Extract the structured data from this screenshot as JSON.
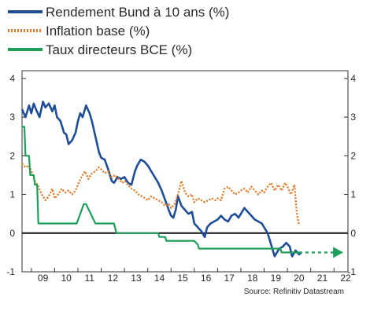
{
  "chart_data": {
    "type": "line",
    "title": "",
    "xlabel": "",
    "ylabel": "",
    "source": "Source: Refinitiv Datastream",
    "xlim": [
      2008.6,
      2022.6
    ],
    "ylim": [
      -1,
      4.2
    ],
    "x_ticks": [
      {
        "label": "09",
        "pos": 2009.5
      },
      {
        "label": "10",
        "pos": 2010.5
      },
      {
        "label": "11",
        "pos": 2011.5
      },
      {
        "label": "12",
        "pos": 2012.5
      },
      {
        "label": "13",
        "pos": 2013.5
      },
      {
        "label": "14",
        "pos": 2014.5
      },
      {
        "label": "15",
        "pos": 2015.5
      },
      {
        "label": "16",
        "pos": 2016.5
      },
      {
        "label": "17",
        "pos": 2017.5
      },
      {
        "label": "18",
        "pos": 2018.5
      },
      {
        "label": "19",
        "pos": 2019.5
      },
      {
        "label": "20",
        "pos": 2020.5
      },
      {
        "label": "21",
        "pos": 2021.5
      },
      {
        "label": "22",
        "pos": 2022.5
      }
    ],
    "y_ticks": [
      "-1",
      "0",
      "1",
      "2",
      "3",
      "4"
    ],
    "y_tick_values": [
      -1,
      0,
      1,
      2,
      3,
      4
    ],
    "zero_line": true,
    "legend_position": "top-left",
    "series": [
      {
        "name": "Rendement Bund à 10 ans (%)",
        "style": "solid",
        "color": "#1f4e96",
        "x": [
          2008.6,
          2008.75,
          2008.9,
          2009.0,
          2009.1,
          2009.2,
          2009.35,
          2009.5,
          2009.6,
          2009.75,
          2009.9,
          2010.0,
          2010.1,
          2010.25,
          2010.4,
          2010.5,
          2010.6,
          2010.75,
          2010.9,
          2011.0,
          2011.1,
          2011.2,
          2011.35,
          2011.5,
          2011.6,
          2011.75,
          2011.9,
          2012.0,
          2012.15,
          2012.3,
          2012.45,
          2012.55,
          2012.7,
          2012.85,
          2013.0,
          2013.15,
          2013.3,
          2013.45,
          2013.55,
          2013.7,
          2013.85,
          2014.0,
          2014.15,
          2014.3,
          2014.45,
          2014.6,
          2014.75,
          2014.9,
          2015.0,
          2015.1,
          2015.2,
          2015.3,
          2015.45,
          2015.6,
          2015.75,
          2015.9,
          2016.0,
          2016.15,
          2016.3,
          2016.45,
          2016.55,
          2016.7,
          2016.85,
          2017.0,
          2017.15,
          2017.3,
          2017.45,
          2017.6,
          2017.75,
          2017.9,
          2018.0,
          2018.15,
          2018.3,
          2018.45,
          2018.6,
          2018.75,
          2018.9,
          2019.0,
          2019.15,
          2019.3,
          2019.45,
          2019.55,
          2019.65,
          2019.8,
          2019.95,
          2020.1,
          2020.2,
          2020.35,
          2020.5,
          2020.6
        ],
        "values": [
          3.2,
          3.0,
          3.3,
          3.1,
          3.35,
          3.2,
          3.0,
          3.4,
          3.25,
          3.35,
          3.15,
          3.3,
          3.0,
          2.9,
          2.6,
          2.55,
          2.3,
          2.4,
          2.6,
          2.9,
          3.1,
          3.0,
          3.3,
          3.1,
          2.9,
          2.5,
          2.1,
          1.95,
          1.9,
          1.65,
          1.35,
          1.3,
          1.45,
          1.4,
          1.45,
          1.3,
          1.25,
          1.6,
          1.75,
          1.9,
          1.85,
          1.75,
          1.6,
          1.45,
          1.3,
          1.1,
          0.85,
          0.6,
          0.45,
          0.4,
          0.6,
          0.95,
          0.7,
          0.6,
          0.5,
          0.55,
          0.25,
          0.15,
          0.05,
          -0.1,
          0.15,
          0.25,
          0.3,
          0.35,
          0.45,
          0.35,
          0.3,
          0.45,
          0.5,
          0.4,
          0.5,
          0.65,
          0.55,
          0.45,
          0.35,
          0.3,
          0.25,
          0.15,
          0.0,
          -0.3,
          -0.6,
          -0.5,
          -0.4,
          -0.35,
          -0.25,
          -0.35,
          -0.6,
          -0.45,
          -0.55,
          -0.5
        ]
      },
      {
        "name": "Inflation base (%)",
        "style": "dotted",
        "color": "#e07b2a",
        "x": [
          2008.6,
          2008.75,
          2008.9,
          2009.0,
          2009.15,
          2009.3,
          2009.45,
          2009.6,
          2009.75,
          2009.9,
          2010.0,
          2010.15,
          2010.3,
          2010.45,
          2010.6,
          2010.75,
          2010.9,
          2011.0,
          2011.15,
          2011.3,
          2011.45,
          2011.6,
          2011.75,
          2011.9,
          2012.0,
          2012.15,
          2012.3,
          2012.45,
          2012.6,
          2012.75,
          2012.9,
          2013.0,
          2013.15,
          2013.3,
          2013.45,
          2013.6,
          2013.75,
          2013.9,
          2014.0,
          2014.15,
          2014.3,
          2014.45,
          2014.6,
          2014.75,
          2014.9,
          2015.0,
          2015.15,
          2015.3,
          2015.45,
          2015.6,
          2015.75,
          2015.9,
          2016.0,
          2016.15,
          2016.3,
          2016.45,
          2016.6,
          2016.75,
          2016.9,
          2017.0,
          2017.15,
          2017.3,
          2017.45,
          2017.6,
          2017.75,
          2017.9,
          2018.0,
          2018.15,
          2018.3,
          2018.45,
          2018.6,
          2018.75,
          2018.9,
          2019.0,
          2019.15,
          2019.3,
          2019.45,
          2019.6,
          2019.75,
          2019.9,
          2020.0,
          2020.15,
          2020.3,
          2020.4,
          2020.5
        ],
        "values": [
          1.8,
          1.7,
          1.75,
          1.6,
          1.35,
          1.2,
          1.0,
          0.85,
          0.95,
          1.15,
          0.9,
          1.0,
          1.15,
          1.05,
          1.1,
          1.0,
          1.1,
          1.25,
          1.45,
          1.6,
          1.4,
          1.55,
          1.6,
          1.7,
          1.65,
          1.55,
          1.6,
          1.45,
          1.5,
          1.4,
          1.3,
          1.35,
          1.25,
          1.15,
          1.1,
          1.0,
          0.95,
          0.9,
          0.85,
          0.95,
          0.9,
          0.85,
          0.8,
          0.7,
          0.75,
          0.65,
          0.75,
          1.0,
          1.35,
          1.05,
          0.95,
          1.0,
          0.8,
          0.9,
          0.85,
          0.8,
          0.85,
          0.9,
          0.85,
          0.9,
          0.85,
          1.15,
          1.2,
          1.1,
          1.0,
          1.05,
          1.1,
          1.15,
          1.05,
          1.2,
          1.1,
          1.0,
          1.1,
          1.05,
          1.2,
          1.3,
          1.1,
          1.25,
          1.1,
          1.3,
          1.2,
          1.0,
          1.25,
          0.55,
          0.2
        ]
      },
      {
        "name": "Taux directeurs BCE (%)",
        "style": "solid",
        "color": "#1f9e5a",
        "x": [
          2008.6,
          2008.7,
          2008.75,
          2008.9,
          2008.95,
          2009.1,
          2009.15,
          2009.25,
          2009.3,
          2010.95,
          2011.25,
          2011.35,
          2011.75,
          2011.85,
          2012.0,
          2012.55,
          2012.65,
          2013.4,
          2013.5,
          2013.9,
          2014.0,
          2014.45,
          2014.5,
          2014.75,
          2014.8,
          2015.9,
          2016.0,
          2016.15,
          2016.2,
          2019.7,
          2019.75,
          2020.5
        ],
        "values": [
          2.75,
          2.75,
          2.0,
          2.0,
          1.5,
          1.5,
          1.25,
          1.25,
          0.25,
          0.25,
          0.75,
          0.75,
          0.25,
          0.25,
          0.25,
          0.25,
          0.0,
          0.0,
          0.0,
          0.0,
          0.0,
          0.0,
          -0.1,
          -0.1,
          -0.2,
          -0.2,
          -0.2,
          -0.3,
          -0.4,
          -0.4,
          -0.5,
          -0.5
        ]
      },
      {
        "name": "",
        "style": "dashed-arrow",
        "color": "#1f9e5a",
        "x": [
          2020.5,
          2022.3
        ],
        "values": [
          -0.5,
          -0.5
        ]
      }
    ]
  },
  "legend": {
    "items": [
      {
        "label": "Rendement Bund à 10 ans (%)",
        "color": "#1f4e96",
        "style": "solid"
      },
      {
        "label": "Inflation base (%)",
        "color": "#e07b2a",
        "style": "dotted"
      },
      {
        "label": "Taux directeurs BCE (%)",
        "color": "#1f9e5a",
        "style": "solid"
      }
    ]
  }
}
